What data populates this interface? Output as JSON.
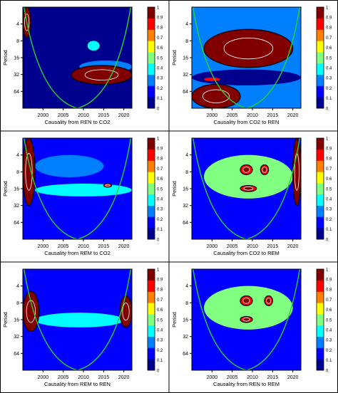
{
  "colorbar": {
    "ticks": [
      "0",
      "0.1",
      "0.2",
      "0.3",
      "0.4",
      "0.5",
      "0.6",
      "0.7",
      "0.8",
      "0.9",
      "1"
    ],
    "colors": [
      "#00008f",
      "#0000ff",
      "#0080ff",
      "#00ffff",
      "#80ff80",
      "#ffff00",
      "#ff8000",
      "#ff0000",
      "#800000"
    ]
  },
  "chart_data": [
    {
      "type": "heatmap",
      "xlabel": "Causality from REN to CO2",
      "ylabel": "Period",
      "x_ticks": [
        "2000",
        "2005",
        "2010",
        "2015",
        "2020"
      ],
      "y_ticks": [
        "4",
        "8",
        "16",
        "32",
        "64"
      ],
      "xlim": [
        1995,
        2022
      ],
      "ylim": [
        2,
        128
      ],
      "log_y": true,
      "background": 0.08,
      "regions": [
        {
          "x0": 2007,
          "x1": 2022,
          "p0": 22,
          "p1": 48,
          "value": 0.9,
          "contour": true
        },
        {
          "x0": 1995,
          "x1": 1997,
          "p0": 2,
          "p1": 7,
          "value": 0.9,
          "contour": true
        },
        {
          "x0": 2009,
          "x1": 2022,
          "p0": 18,
          "p1": 30,
          "value": 0.3,
          "contour": false
        },
        {
          "x0": 2011,
          "x1": 2014,
          "p0": 8,
          "p1": 12,
          "value": 0.4,
          "contour": false
        }
      ]
    },
    {
      "type": "heatmap",
      "xlabel": "Causality from CO2 to REN",
      "ylabel": "Period",
      "x_ticks": [
        "2000",
        "2005",
        "2010",
        "2015",
        "2020"
      ],
      "y_ticks": [
        "4",
        "8",
        "16",
        "32",
        "64"
      ],
      "xlim": [
        1995,
        2022
      ],
      "ylim": [
        2,
        128
      ],
      "log_y": true,
      "background": 0.3,
      "regions": [
        {
          "x0": 1998,
          "x1": 2020,
          "p0": 5,
          "p1": 24,
          "value": 0.9,
          "contour": true
        },
        {
          "x0": 1995,
          "x1": 2007,
          "p0": 48,
          "p1": 128,
          "value": 0.9,
          "contour": true
        },
        {
          "x0": 1995,
          "x1": 2022,
          "p0": 26,
          "p1": 50,
          "value": 0.1,
          "contour": false
        },
        {
          "x0": 1998,
          "x1": 2002,
          "p0": 36,
          "p1": 42,
          "value": 0.8,
          "contour": false
        }
      ]
    },
    {
      "type": "heatmap",
      "xlabel": "Causality from REM to CO2",
      "ylabel": "Period",
      "x_ticks": [
        "2000",
        "2005",
        "2010",
        "2015",
        "2020"
      ],
      "y_ticks": [
        "4",
        "8",
        "16",
        "32",
        "64"
      ],
      "xlim": [
        1995,
        2022
      ],
      "ylim": [
        2,
        128
      ],
      "log_y": true,
      "background": 0.15,
      "regions": [
        {
          "x0": 1995,
          "x1": 1998,
          "p0": 2,
          "p1": 32,
          "value": 0.9,
          "contour": true
        },
        {
          "x0": 2015,
          "x1": 2017,
          "p0": 13,
          "p1": 15,
          "value": 0.8,
          "contour": true
        },
        {
          "x0": 1998,
          "x1": 2022,
          "p0": 13,
          "p1": 22,
          "value": 0.35,
          "contour": false
        },
        {
          "x0": 1998,
          "x1": 2015,
          "p0": 4,
          "p1": 10,
          "value": 0.3,
          "contour": false
        }
      ]
    },
    {
      "type": "heatmap",
      "xlabel": "Causality from CO2 to REM",
      "ylabel": "Period",
      "x_ticks": [
        "2000",
        "2005",
        "2010",
        "2015",
        "2020"
      ],
      "y_ticks": [
        "4",
        "8",
        "16",
        "32",
        "64"
      ],
      "xlim": [
        1995,
        2022
      ],
      "ylim": [
        2,
        128
      ],
      "log_y": true,
      "background": 0.2,
      "regions": [
        {
          "x0": 2020,
          "x1": 2022,
          "p0": 2,
          "p1": 32,
          "value": 0.9,
          "contour": true
        },
        {
          "x0": 2007,
          "x1": 2010,
          "p0": 6,
          "p1": 9,
          "value": 0.85,
          "contour": true
        },
        {
          "x0": 2012,
          "x1": 2014,
          "p0": 6,
          "p1": 9,
          "value": 0.85,
          "contour": true
        },
        {
          "x0": 2007,
          "x1": 2011,
          "p0": 14,
          "p1": 18,
          "value": 0.85,
          "contour": true
        },
        {
          "x0": 1998,
          "x1": 2020,
          "p0": 4,
          "p1": 24,
          "value": 0.45,
          "contour": false
        }
      ]
    },
    {
      "type": "heatmap",
      "xlabel": "Causality from REM to REN",
      "ylabel": "Period",
      "x_ticks": [
        "2000",
        "2005",
        "2010",
        "2015",
        "2020"
      ],
      "y_ticks": [
        "4",
        "8",
        "16",
        "32",
        "64"
      ],
      "xlim": [
        1995,
        2022
      ],
      "ylim": [
        2,
        128
      ],
      "log_y": true,
      "background": 0.15,
      "regions": [
        {
          "x0": 1995,
          "x1": 1999,
          "p0": 5,
          "p1": 26,
          "value": 0.9,
          "contour": true
        },
        {
          "x0": 2019,
          "x1": 2022,
          "p0": 6,
          "p1": 22,
          "value": 0.9,
          "contour": true
        },
        {
          "x0": 1998,
          "x1": 2020,
          "p0": 12,
          "p1": 22,
          "value": 0.35,
          "contour": false
        }
      ]
    },
    {
      "type": "heatmap",
      "xlabel": "Causality from REN to REM",
      "ylabel": "Period",
      "x_ticks": [
        "2000",
        "2005",
        "2010",
        "2015",
        "2020"
      ],
      "y_ticks": [
        "4",
        "8",
        "16",
        "32",
        "64"
      ],
      "xlim": [
        1995,
        2022
      ],
      "ylim": [
        2,
        128
      ],
      "log_y": true,
      "background": 0.2,
      "regions": [
        {
          "x0": 2007,
          "x1": 2010,
          "p0": 6,
          "p1": 9,
          "value": 0.85,
          "contour": true
        },
        {
          "x0": 2013,
          "x1": 2015,
          "p0": 6,
          "p1": 9,
          "value": 0.85,
          "contour": true
        },
        {
          "x0": 2007,
          "x1": 2010,
          "p0": 14,
          "p1": 18,
          "value": 0.85,
          "contour": true
        },
        {
          "x0": 1998,
          "x1": 2020,
          "p0": 4,
          "p1": 24,
          "value": 0.45,
          "contour": false
        }
      ]
    }
  ]
}
